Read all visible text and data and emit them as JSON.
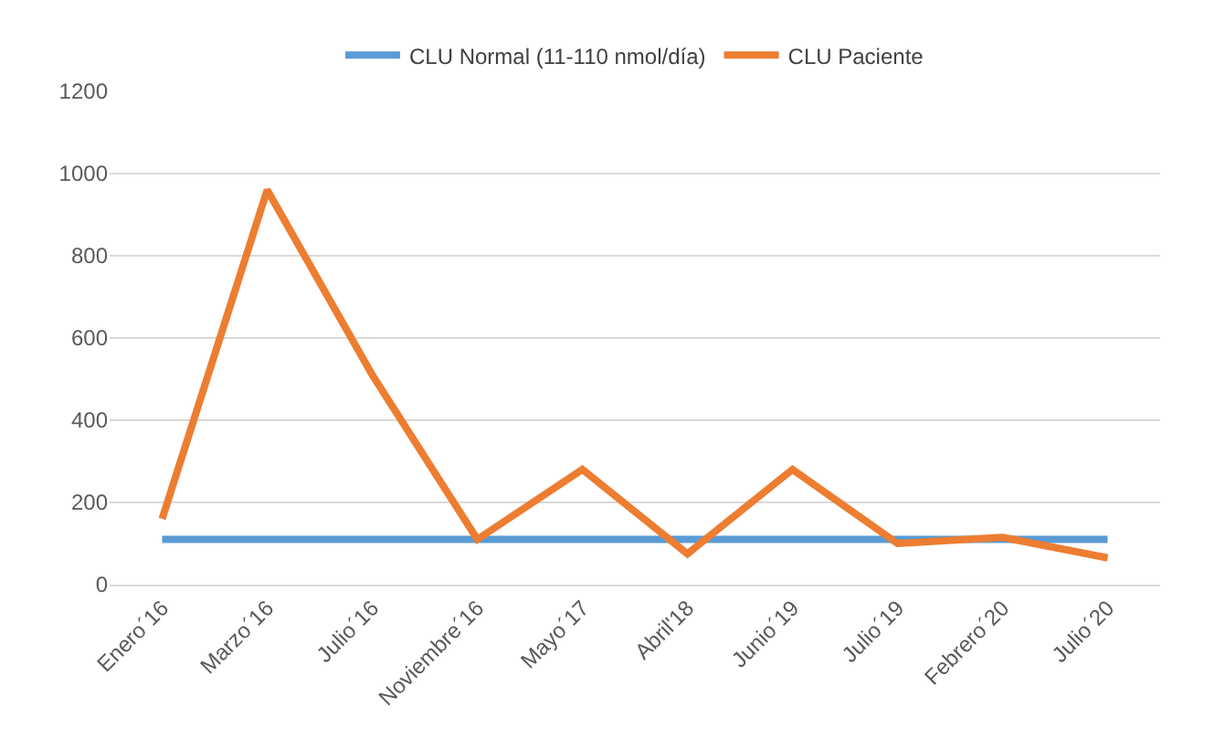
{
  "chart_data": {
    "type": "line",
    "categories": [
      "Enero´16",
      "Marzo´16",
      "Julio´16",
      "Noviembre´16",
      "Mayo´17",
      "Abril'18",
      "Junio´19",
      "Julio´19",
      "Febrero´20",
      "Julio´20"
    ],
    "series": [
      {
        "name": "CLU Normal (11-110 nmol/día)",
        "color": "#5b9bd5",
        "values": [
          110,
          110,
          110,
          110,
          110,
          110,
          110,
          110,
          110,
          110
        ]
      },
      {
        "name": "CLU Paciente",
        "color": "#ed7d31",
        "values": [
          160,
          960,
          510,
          110,
          280,
          75,
          280,
          100,
          115,
          65
        ]
      }
    ],
    "ylim": [
      0,
      1200
    ],
    "yticks": [
      0,
      200,
      400,
      600,
      800,
      1000,
      1200
    ],
    "grid": "y",
    "legend": "top",
    "marker": "none",
    "line_style": "solid"
  }
}
